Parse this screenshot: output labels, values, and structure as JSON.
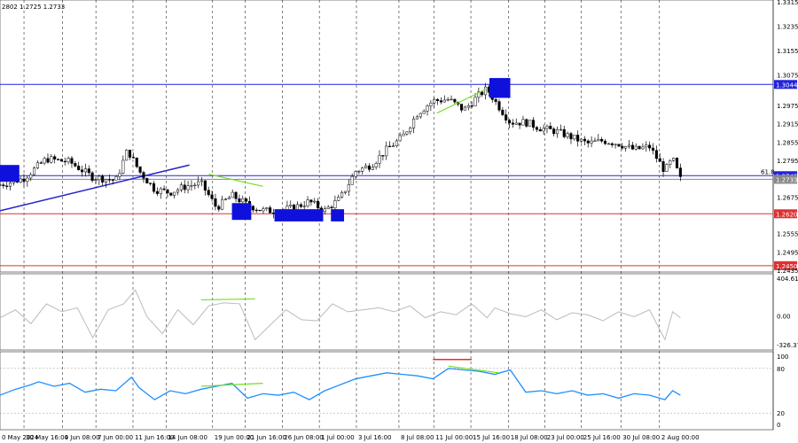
{
  "chart_data": {
    "type": "candlestick",
    "header": "2802 1.2725 1.2733",
    "price_axis": {
      "ylim": [
        1.2435,
        1.3315
      ],
      "ticks": [
        "1.3315",
        "1.3235",
        "1.3155",
        "1.3075",
        "1.2975",
        "1.2915",
        "1.2855",
        "1.2795",
        "1.2675",
        "1.2555",
        "1.2495",
        "1.2435"
      ]
    },
    "x_ticks": [
      "0 May 2024",
      "30 May 16:00",
      "4 Jun 08:00",
      "7 Jun 00:00",
      "11 Jun 16:00",
      "14 Jun 08:00",
      "19 Jun 00:00",
      "21 Jun 16:00",
      "26 Jun 08:00",
      "1 Jul 00:00",
      "3 Jul 16:00",
      "8 Jul 08:00",
      "11 Jul 00:00",
      "15 Jul 16:00",
      "18 Jul 08:00",
      "23 Jul 00:00",
      "25 Jul 16:00",
      "30 Jul 08:00",
      "2 Aug 00:00"
    ],
    "x_tick_fraction": [
      0.0,
      0.031,
      0.081,
      0.124,
      0.172,
      0.215,
      0.275,
      0.317,
      0.365,
      0.413,
      0.461,
      0.516,
      0.561,
      0.609,
      0.658,
      0.705,
      0.752,
      0.803,
      0.853
    ],
    "levels": [
      {
        "name": "resistance",
        "value": 1.3044,
        "label": "1.3044",
        "color": "#2222dd"
      },
      {
        "name": "fib-618",
        "value": 1.2745,
        "label": "1.2745",
        "fib_label": "61.8",
        "color": "#2222dd"
      },
      {
        "name": "current",
        "value": 1.2733,
        "label": "1.2733",
        "color": "#888888"
      },
      {
        "name": "support",
        "value": 1.262,
        "label": "1.2620",
        "color": "#e03030"
      },
      {
        "name": "support-2",
        "value": 1.245,
        "label": "1.2450",
        "color": "#e03030"
      }
    ],
    "price_series": {
      "name": "GBP/USD",
      "x_fraction": [
        0.0,
        0.03,
        0.06,
        0.09,
        0.12,
        0.15,
        0.165,
        0.18,
        0.2,
        0.22,
        0.24,
        0.26,
        0.28,
        0.3,
        0.32,
        0.34,
        0.36,
        0.38,
        0.4,
        0.42,
        0.44,
        0.46,
        0.48,
        0.5,
        0.52,
        0.54,
        0.56,
        0.58,
        0.6,
        0.62,
        0.63,
        0.64,
        0.66,
        0.68,
        0.7,
        0.72,
        0.74,
        0.76,
        0.78,
        0.8,
        0.82,
        0.84,
        0.86,
        0.87,
        0.88
      ],
      "close": [
        1.2715,
        1.2735,
        1.28,
        1.279,
        1.274,
        1.273,
        1.283,
        1.276,
        1.27,
        1.269,
        1.271,
        1.272,
        1.264,
        1.268,
        1.265,
        1.263,
        1.263,
        1.264,
        1.266,
        1.263,
        1.267,
        1.276,
        1.278,
        1.283,
        1.287,
        1.295,
        1.299,
        1.2995,
        1.296,
        1.301,
        1.303,
        1.299,
        1.292,
        1.292,
        1.29,
        1.289,
        1.287,
        1.285,
        1.286,
        1.285,
        1.283,
        1.284,
        1.276,
        1.28,
        1.2733
      ]
    },
    "trend_line": {
      "x_fraction": [
        0.0,
        0.245
      ],
      "y": [
        1.263,
        1.278
      ],
      "color": "#2222cc"
    },
    "price_divergence": [
      {
        "x_fraction": [
          0.27,
          0.34
        ],
        "y": [
          1.275,
          1.271
        ],
        "color": "#77dd22"
      },
      {
        "x_fraction": [
          0.565,
          0.63
        ],
        "y": [
          1.295,
          1.303
        ],
        "color": "#77dd22"
      }
    ],
    "markers": [
      {
        "x_fraction": [
          0.0,
          0.025
        ],
        "y": [
          1.2725,
          1.278
        ]
      },
      {
        "x_fraction": [
          0.3,
          0.325
        ],
        "y": [
          1.26,
          1.2655
        ]
      },
      {
        "x_fraction": [
          0.355,
          0.418
        ],
        "y": [
          1.2595,
          1.2635
        ]
      },
      {
        "x_fraction": [
          0.428,
          0.445
        ],
        "y": [
          1.2595,
          1.2635
        ]
      },
      {
        "x_fraction": [
          0.633,
          0.66
        ],
        "y": [
          1.3,
          1.3065
        ]
      }
    ],
    "cci": {
      "ylim": [
        -326.377,
        404.6122
      ],
      "tick_labels": [
        "404.6122",
        "0.00",
        "-326.377"
      ],
      "x_fraction": [
        0.0,
        0.02,
        0.04,
        0.06,
        0.08,
        0.1,
        0.12,
        0.14,
        0.16,
        0.175,
        0.19,
        0.21,
        0.23,
        0.25,
        0.27,
        0.29,
        0.31,
        0.33,
        0.35,
        0.37,
        0.39,
        0.41,
        0.43,
        0.45,
        0.47,
        0.49,
        0.51,
        0.53,
        0.55,
        0.57,
        0.59,
        0.61,
        0.63,
        0.64,
        0.66,
        0.68,
        0.7,
        0.72,
        0.74,
        0.76,
        0.78,
        0.8,
        0.82,
        0.84,
        0.86,
        0.87,
        0.88
      ],
      "values": [
        -20,
        60,
        -80,
        120,
        40,
        80,
        -220,
        60,
        120,
        260,
        -10,
        -180,
        60,
        -90,
        100,
        130,
        120,
        -240,
        -90,
        60,
        -40,
        -50,
        120,
        40,
        60,
        80,
        40,
        100,
        -20,
        40,
        10,
        120,
        -20,
        80,
        20,
        -10,
        60,
        -40,
        30,
        10,
        -50,
        40,
        -10,
        60,
        -240,
        40,
        -20
      ],
      "divergence": {
        "x_fraction": [
          0.26,
          0.33
        ],
        "y": [
          160,
          170
        ],
        "color": "#77dd22"
      },
      "color": "#bbbbbb"
    },
    "rsi": {
      "ylim": [
        0,
        100
      ],
      "tick_labels": [
        "100",
        "80",
        "20",
        "0"
      ],
      "x_fraction": [
        0.0,
        0.02,
        0.04,
        0.05,
        0.07,
        0.09,
        0.11,
        0.13,
        0.15,
        0.17,
        0.18,
        0.2,
        0.22,
        0.24,
        0.26,
        0.28,
        0.3,
        0.32,
        0.34,
        0.36,
        0.38,
        0.4,
        0.42,
        0.44,
        0.46,
        0.48,
        0.5,
        0.52,
        0.54,
        0.56,
        0.58,
        0.6,
        0.62,
        0.64,
        0.66,
        0.68,
        0.7,
        0.72,
        0.74,
        0.76,
        0.78,
        0.8,
        0.82,
        0.84,
        0.86,
        0.87,
        0.88
      ],
      "values": [
        44,
        52,
        58,
        62,
        56,
        60,
        48,
        52,
        50,
        68,
        54,
        38,
        50,
        46,
        52,
        56,
        60,
        40,
        46,
        44,
        48,
        38,
        50,
        58,
        66,
        70,
        74,
        72,
        70,
        66,
        80,
        78,
        76,
        72,
        78,
        48,
        50,
        46,
        50,
        44,
        46,
        40,
        46,
        44,
        38,
        50,
        44
      ],
      "divergence": [
        {
          "x_fraction": [
            0.26,
            0.34
          ],
          "y": [
            56,
            60
          ],
          "color": "#77dd22"
        },
        {
          "x_fraction": [
            0.58,
            0.645
          ],
          "y": [
            83,
            74
          ],
          "color": "#77dd22"
        }
      ],
      "overbought_mark": {
        "x_fraction": [
          0.56,
          0.61
        ],
        "y": 92,
        "color": "#e03030"
      },
      "color": "#1f8fff"
    }
  }
}
